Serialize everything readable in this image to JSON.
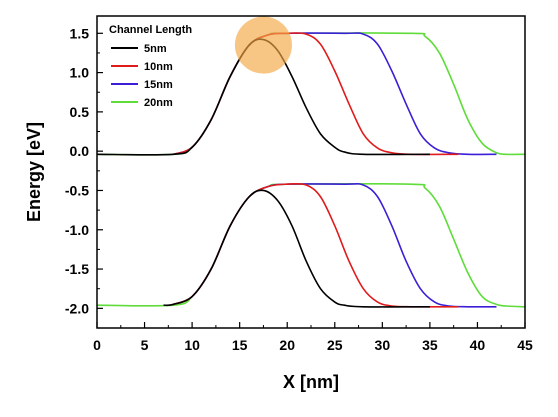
{
  "chart_data": {
    "type": "line",
    "xlabel": "X [nm]",
    "ylabel": "Energy [eV]",
    "xlim": [
      0,
      45
    ],
    "ylim": [
      -2.25,
      1.72
    ],
    "xticks": [
      0,
      5,
      10,
      15,
      20,
      25,
      30,
      35,
      40,
      45
    ],
    "yticks": [
      1.5,
      1.0,
      0.5,
      0.0,
      -0.5,
      -1.0,
      -1.5,
      -2.0
    ],
    "xtick_labels": [
      "0",
      "5",
      "10",
      "15",
      "20",
      "25",
      "30",
      "35",
      "40",
      "45"
    ],
    "ytick_labels": [
      "1.5",
      "1.0",
      "0.5",
      "0.0",
      "-0.5",
      "-1.0",
      "-1.5",
      "-2.0"
    ],
    "grid": false,
    "legend": {
      "title": "Channel Length",
      "placement": "top-left",
      "entries": [
        "5nm",
        "10nm",
        "15nm",
        "20nm"
      ]
    },
    "highlight": {
      "type": "circle",
      "x": 17.5,
      "y": 1.35,
      "radius_x_units": 3.0,
      "color": "#f5a742",
      "opacity": 0.65
    },
    "series": [
      {
        "name": "5nm",
        "color": "#000000",
        "conduction": [
          [
            0,
            -0.04
          ],
          [
            8,
            -0.04
          ],
          [
            10,
            0.05
          ],
          [
            12,
            0.4
          ],
          [
            14,
            0.95
          ],
          [
            16,
            1.35
          ],
          [
            17.5,
            1.42
          ],
          [
            19,
            1.28
          ],
          [
            20.5,
            0.95
          ],
          [
            22,
            0.55
          ],
          [
            23.5,
            0.22
          ],
          [
            25,
            0.05
          ],
          [
            26,
            -0.01
          ],
          [
            28,
            -0.04
          ],
          [
            35,
            -0.04
          ]
        ],
        "valence": [
          [
            7,
            -1.96
          ],
          [
            8,
            -1.95
          ],
          [
            10,
            -1.85
          ],
          [
            12,
            -1.5
          ],
          [
            14,
            -0.95
          ],
          [
            16,
            -0.58
          ],
          [
            17.5,
            -0.5
          ],
          [
            19,
            -0.63
          ],
          [
            20.5,
            -0.95
          ],
          [
            22,
            -1.4
          ],
          [
            23.5,
            -1.75
          ],
          [
            25,
            -1.92
          ],
          [
            26,
            -1.96
          ],
          [
            28,
            -1.98
          ],
          [
            35,
            -1.98
          ]
        ]
      },
      {
        "name": "10nm",
        "color": "#e01b1b",
        "conduction": [
          [
            8,
            -0.04
          ],
          [
            10,
            0.05
          ],
          [
            12,
            0.4
          ],
          [
            14,
            0.95
          ],
          [
            16,
            1.35
          ],
          [
            18,
            1.48
          ],
          [
            20,
            1.5
          ],
          [
            22,
            1.49
          ],
          [
            23.5,
            1.36
          ],
          [
            25,
            1.02
          ],
          [
            26.5,
            0.6
          ],
          [
            28,
            0.22
          ],
          [
            29.5,
            0.04
          ],
          [
            31,
            -0.02
          ],
          [
            33,
            -0.04
          ],
          [
            38,
            -0.04
          ]
        ],
        "valence": [
          [
            8,
            -1.95
          ],
          [
            10,
            -1.85
          ],
          [
            12,
            -1.5
          ],
          [
            14,
            -0.95
          ],
          [
            16,
            -0.58
          ],
          [
            18,
            -0.45
          ],
          [
            20,
            -0.42
          ],
          [
            22,
            -0.43
          ],
          [
            23.5,
            -0.58
          ],
          [
            25,
            -0.95
          ],
          [
            26.5,
            -1.4
          ],
          [
            28,
            -1.75
          ],
          [
            29.5,
            -1.92
          ],
          [
            31,
            -1.97
          ],
          [
            33,
            -1.98
          ],
          [
            38,
            -1.98
          ]
        ]
      },
      {
        "name": "15nm",
        "color": "#3b1fd6",
        "conduction": [
          [
            8,
            -0.04
          ],
          [
            10,
            0.05
          ],
          [
            12,
            0.4
          ],
          [
            14,
            0.95
          ],
          [
            16,
            1.35
          ],
          [
            18,
            1.48
          ],
          [
            20,
            1.5
          ],
          [
            26,
            1.5
          ],
          [
            28,
            1.49
          ],
          [
            29.5,
            1.36
          ],
          [
            31,
            1.02
          ],
          [
            32.5,
            0.6
          ],
          [
            34,
            0.22
          ],
          [
            35.5,
            0.04
          ],
          [
            37,
            -0.02
          ],
          [
            39,
            -0.04
          ],
          [
            42,
            -0.04
          ]
        ],
        "valence": [
          [
            8,
            -1.95
          ],
          [
            10,
            -1.85
          ],
          [
            12,
            -1.5
          ],
          [
            14,
            -0.95
          ],
          [
            16,
            -0.58
          ],
          [
            18,
            -0.45
          ],
          [
            20,
            -0.42
          ],
          [
            26,
            -0.42
          ],
          [
            28,
            -0.43
          ],
          [
            29.5,
            -0.58
          ],
          [
            31,
            -0.95
          ],
          [
            32.5,
            -1.4
          ],
          [
            34,
            -1.75
          ],
          [
            35.5,
            -1.92
          ],
          [
            37,
            -1.97
          ],
          [
            39,
            -1.98
          ],
          [
            42,
            -1.98
          ]
        ]
      },
      {
        "name": "20nm",
        "color": "#5fdc3a",
        "conduction": [
          [
            0,
            -0.04
          ],
          [
            8,
            -0.04
          ],
          [
            10,
            0.05
          ],
          [
            12,
            0.4
          ],
          [
            14,
            0.95
          ],
          [
            16,
            1.35
          ],
          [
            18,
            1.48
          ],
          [
            20,
            1.5
          ],
          [
            33,
            1.5
          ],
          [
            34.5,
            1.46
          ],
          [
            36,
            1.25
          ],
          [
            37.5,
            0.85
          ],
          [
            39,
            0.4
          ],
          [
            40.5,
            0.1
          ],
          [
            42,
            -0.02
          ],
          [
            43,
            -0.04
          ],
          [
            45,
            -0.04
          ]
        ],
        "valence": [
          [
            0,
            -1.96
          ],
          [
            8,
            -1.96
          ],
          [
            10,
            -1.85
          ],
          [
            12,
            -1.5
          ],
          [
            14,
            -0.95
          ],
          [
            16,
            -0.58
          ],
          [
            18,
            -0.45
          ],
          [
            20,
            -0.42
          ],
          [
            33,
            -0.42
          ],
          [
            34.5,
            -0.47
          ],
          [
            36,
            -0.7
          ],
          [
            37.5,
            -1.12
          ],
          [
            39,
            -1.55
          ],
          [
            40.5,
            -1.85
          ],
          [
            42,
            -1.95
          ],
          [
            43,
            -1.97
          ],
          [
            45,
            -1.98
          ]
        ]
      }
    ]
  }
}
